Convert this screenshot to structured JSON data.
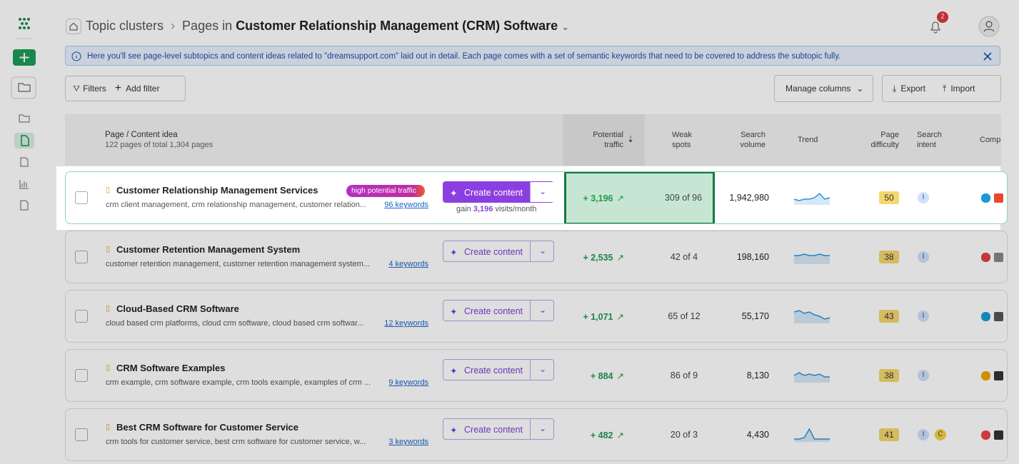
{
  "header": {
    "root": "Topic clusters",
    "prefix": "Pages in",
    "current": "Customer Relationship Management (CRM) Software",
    "notifications": "2"
  },
  "info_banner": "Here you'll see page-level subtopics and content ideas related to \"dreamsupport.com\" laid out in detail. Each page comes with a set of semantic keywords that need to be covered to address the subtopic fully.",
  "toolbar": {
    "filters": "Filters",
    "add_filter": "Add filter",
    "manage_columns": "Manage columns",
    "export": "Export",
    "import": "Import"
  },
  "table": {
    "columns": {
      "page": "Page / Content idea",
      "potential_traffic": "Potential traffic",
      "weak_spots": "Weak spots",
      "search_volume": "Search volume",
      "trend": "Trend",
      "difficulty": "Page difficulty",
      "intent": "Search intent",
      "competitors": "Comp"
    },
    "subtitle": "122 pages of total 1,304 pages",
    "rows": [
      {
        "title": "Customer Relationship Management Services",
        "badge": "high potential traffic",
        "keywords": "crm client management, crm relationship management, customer relation...",
        "keywords_link": "96 keywords",
        "button": "Create content",
        "gain_label": "gain",
        "gain_value": "3,196",
        "gain_unit": "visits/month",
        "potential_traffic": "+ 3,196",
        "weak_spots": "309 of 96",
        "search_volume": "1,942,980",
        "trend": [
          3,
          2,
          3,
          3,
          4,
          7,
          3,
          4
        ],
        "difficulty": "50",
        "intent": [
          "I"
        ]
      },
      {
        "title": "Customer Retention Management System",
        "keywords": "customer retention management, customer retention management system...",
        "keywords_link": "4 keywords",
        "button": "Create content",
        "potential_traffic": "+ 2,535",
        "weak_spots": "42 of 4",
        "search_volume": "198,160",
        "trend": [
          5,
          5,
          6,
          5,
          5,
          6,
          5,
          5
        ],
        "difficulty": "38",
        "intent": [
          "I"
        ]
      },
      {
        "title": "Cloud-Based CRM Software",
        "keywords": "cloud based crm platforms, cloud crm software, cloud based crm softwar...",
        "keywords_link": "12 keywords",
        "button": "Create content",
        "potential_traffic": "+ 1,071",
        "weak_spots": "65 of 12",
        "search_volume": "55,170",
        "trend": [
          7,
          8,
          6,
          7,
          5,
          4,
          2,
          3
        ],
        "difficulty": "43",
        "intent": [
          "I"
        ]
      },
      {
        "title": "CRM Software Examples",
        "keywords": "crm example, crm software example, crm tools example, examples of crm ...",
        "keywords_link": "9 keywords",
        "button": "Create content",
        "potential_traffic": "+ 884",
        "weak_spots": "86 of 9",
        "search_volume": "8,130",
        "trend": [
          4,
          6,
          4,
          5,
          4,
          5,
          3,
          3
        ],
        "difficulty": "38",
        "intent": [
          "I"
        ]
      },
      {
        "title": "Best CRM Software for Customer Service",
        "keywords": "crm tools for customer service, best crm software for customer service, w...",
        "keywords_link": "3 keywords",
        "button": "Create content",
        "potential_traffic": "+ 482",
        "weak_spots": "20 of 3",
        "search_volume": "4,430",
        "trend": [
          1,
          1,
          2,
          8,
          1,
          1,
          1,
          1
        ],
        "difficulty": "41",
        "intent": [
          "I",
          "C"
        ]
      }
    ]
  }
}
